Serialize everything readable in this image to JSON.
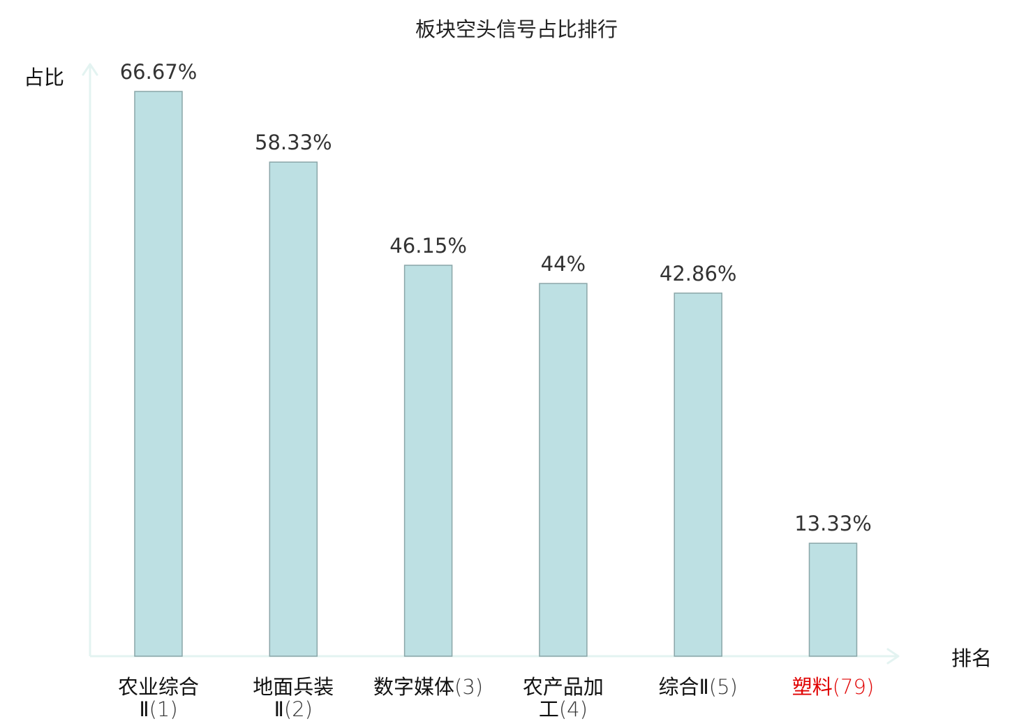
{
  "chart_data": {
    "type": "bar",
    "title": "板块空头信号占比排行",
    "ylabel": "占比",
    "xlabel": "排名",
    "categories": [
      {
        "name_lines": [
          "农业综合",
          "Ⅱ"
        ],
        "rank": "(1)",
        "highlight": false
      },
      {
        "name_lines": [
          "地面兵装",
          "Ⅱ"
        ],
        "rank": "(2)",
        "highlight": false
      },
      {
        "name_lines": [
          "数字媒体"
        ],
        "rank": "(3)",
        "highlight": false
      },
      {
        "name_lines": [
          "农产品加",
          "工"
        ],
        "rank": "(4)",
        "highlight": false
      },
      {
        "name_lines": [
          "综合Ⅱ"
        ],
        "rank": "(5)",
        "highlight": false
      },
      {
        "name_lines": [
          "塑料"
        ],
        "rank": "(79)",
        "highlight": true
      }
    ],
    "values": [
      66.67,
      58.33,
      46.15,
      44,
      42.86,
      13.33
    ],
    "value_labels": [
      "66.67%",
      "58.33%",
      "46.15%",
      "44%",
      "42.86%",
      "13.33%"
    ],
    "ylim": [
      0,
      66.67
    ],
    "grid": false,
    "colors": {
      "bar_fill": "#bde0e3",
      "bar_stroke": "#8aa6a8",
      "axis": "#e3f3f1",
      "highlight_text": "#e00000",
      "normal_text": "#111111",
      "rank_text": "#333333"
    }
  }
}
